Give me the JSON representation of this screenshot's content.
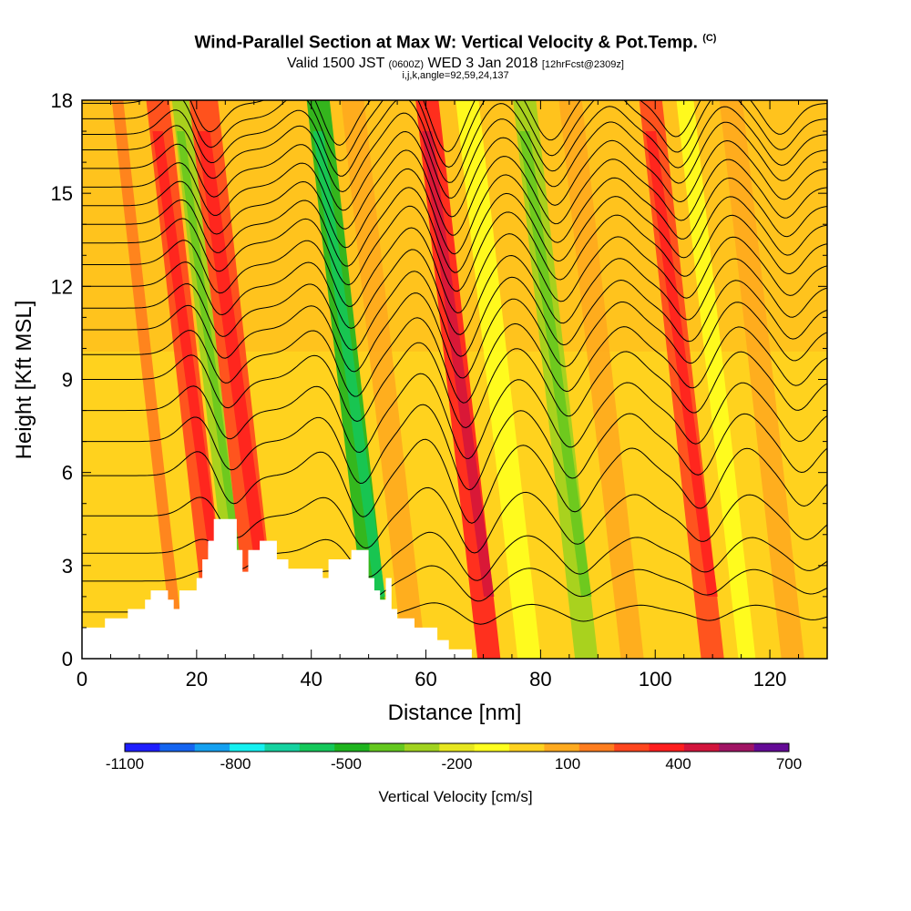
{
  "header": {
    "title": "Wind-Parallel Section at Max W: Vertical Velocity & Pot.Temp.",
    "copyright": "(C)",
    "valid_prefix": "Valid 1500 JST",
    "valid_utc": "(0600Z)",
    "valid_date": "WED 3 Jan 2018",
    "forecast": "[12hrFcst@2309z]",
    "indices": "i,j,k,angle=92,59,24,137"
  },
  "chart_data": {
    "type": "heatmap",
    "title": "Wind-Parallel Section at Max W: Vertical Velocity & Pot.Temp.",
    "xlabel": "Distance [nm]",
    "ylabel": "Height [Kft MSL]",
    "xlim": [
      0,
      130
    ],
    "ylim": [
      0,
      18
    ],
    "x_ticks": [
      0,
      20,
      40,
      60,
      80,
      100,
      120
    ],
    "y_ticks": [
      0,
      3,
      6,
      9,
      12,
      15,
      18
    ],
    "colorbar": {
      "title": "Vertical Velocity [cm/s]",
      "labels": [
        "-1100",
        "-800",
        "-500",
        "-200",
        "100",
        "400",
        "700"
      ],
      "bins": [
        -1100,
        -1000,
        -900,
        -800,
        -700,
        -600,
        -500,
        -400,
        -300,
        -200,
        -100,
        0,
        100,
        200,
        300,
        400,
        500,
        600,
        700
      ],
      "colors": [
        "#1e1eff",
        "#1464f0",
        "#14a0f0",
        "#14f0f0",
        "#14d2a0",
        "#14c85a",
        "#1eb41e",
        "#64c81e",
        "#a0d21e",
        "#e6e61e",
        "#ffff1e",
        "#ffd21e",
        "#ffaa1e",
        "#ff7d1e",
        "#ff461e",
        "#ff1e1e",
        "#d2143c",
        "#a01464",
        "#640a96"
      ]
    },
    "terrain_kft": [
      [
        0,
        1.0
      ],
      [
        4,
        1.0
      ],
      [
        4,
        1.3
      ],
      [
        8,
        1.3
      ],
      [
        8,
        1.6
      ],
      [
        11,
        1.6
      ],
      [
        11,
        1.9
      ],
      [
        12,
        1.9
      ],
      [
        12,
        2.2
      ],
      [
        15,
        2.2
      ],
      [
        15,
        1.9
      ],
      [
        16,
        1.9
      ],
      [
        16,
        1.6
      ],
      [
        17,
        1.6
      ],
      [
        17,
        2.2
      ],
      [
        20,
        2.2
      ],
      [
        20,
        2.6
      ],
      [
        21,
        2.6
      ],
      [
        21,
        3.2
      ],
      [
        22,
        3.2
      ],
      [
        22,
        3.8
      ],
      [
        23,
        3.8
      ],
      [
        23,
        4.5
      ],
      [
        27,
        4.5
      ],
      [
        27,
        3.5
      ],
      [
        28,
        3.5
      ],
      [
        28,
        2.8
      ],
      [
        29,
        2.8
      ],
      [
        29,
        3.5
      ],
      [
        31,
        3.5
      ],
      [
        31,
        3.8
      ],
      [
        34,
        3.8
      ],
      [
        34,
        3.2
      ],
      [
        36,
        3.2
      ],
      [
        36,
        2.9
      ],
      [
        42,
        2.9
      ],
      [
        42,
        2.6
      ],
      [
        43,
        2.6
      ],
      [
        43,
        3.2
      ],
      [
        47,
        3.2
      ],
      [
        47,
        3.5
      ],
      [
        50,
        3.5
      ],
      [
        50,
        2.6
      ],
      [
        51,
        2.6
      ],
      [
        51,
        2.2
      ],
      [
        52,
        2.2
      ],
      [
        52,
        1.9
      ],
      [
        53,
        1.9
      ],
      [
        53,
        2.6
      ],
      [
        54,
        2.6
      ],
      [
        54,
        1.6
      ],
      [
        55,
        1.6
      ],
      [
        55,
        1.3
      ],
      [
        58,
        1.3
      ],
      [
        58,
        1.0
      ],
      [
        62,
        1.0
      ],
      [
        62,
        0.6
      ],
      [
        64,
        0.6
      ],
      [
        64,
        0.3
      ],
      [
        68,
        0.3
      ],
      [
        68,
        0.0
      ]
    ],
    "w_bands": [
      {
        "x": 17,
        "width": 2,
        "w": 200
      },
      {
        "x": 24,
        "width": 4,
        "w": 300
      },
      {
        "x": 28,
        "width": 3,
        "w": -250
      },
      {
        "x": 32,
        "width": 5,
        "w": 300
      },
      {
        "x": 52,
        "width": 4,
        "w": -450
      },
      {
        "x": 58,
        "width": 4,
        "w": 150
      },
      {
        "x": 71,
        "width": 4,
        "w": 400
      },
      {
        "x": 78,
        "width": 4,
        "w": -50
      },
      {
        "x": 88,
        "width": 4,
        "w": -300
      },
      {
        "x": 96,
        "width": 4,
        "w": 150
      },
      {
        "x": 110,
        "width": 4,
        "w": 300
      },
      {
        "x": 116,
        "width": 3,
        "w": -50
      },
      {
        "x": 124,
        "width": 4,
        "w": 150
      }
    ],
    "theta_contour_levels": [
      275,
      277,
      279,
      281,
      283,
      285,
      287,
      289,
      291,
      293,
      295,
      297,
      299,
      301,
      303,
      305,
      307,
      309,
      311,
      313,
      315,
      317,
      319,
      321,
      323
    ],
    "theta_contour_base_heights_kft": [
      1.5,
      2.5,
      3.4,
      4.6,
      5.9,
      7.0,
      8.0,
      9.0,
      9.8,
      10.6,
      11.3,
      12.0,
      12.7,
      13.4,
      14.0,
      14.6,
      15.2,
      15.8,
      16.4,
      16.9,
      17.4,
      17.9
    ],
    "wave_crests": [
      {
        "x": 23,
        "amp_kft": 0.9
      },
      {
        "x": 44,
        "amp_kft": 0.8
      },
      {
        "x": 62,
        "amp_kft": 1.2
      },
      {
        "x": 79,
        "amp_kft": 1.0
      },
      {
        "x": 98,
        "amp_kft": 0.9
      },
      {
        "x": 118,
        "amp_kft": 0.9
      }
    ],
    "wave_troughs": [
      {
        "x": 28,
        "amp_kft": 1.1
      },
      {
        "x": 51,
        "amp_kft": 1.4
      },
      {
        "x": 70,
        "amp_kft": 1.6
      },
      {
        "x": 88,
        "amp_kft": 1.2
      },
      {
        "x": 110,
        "amp_kft": 1.1
      },
      {
        "x": 128,
        "amp_kft": 1.0
      }
    ]
  }
}
